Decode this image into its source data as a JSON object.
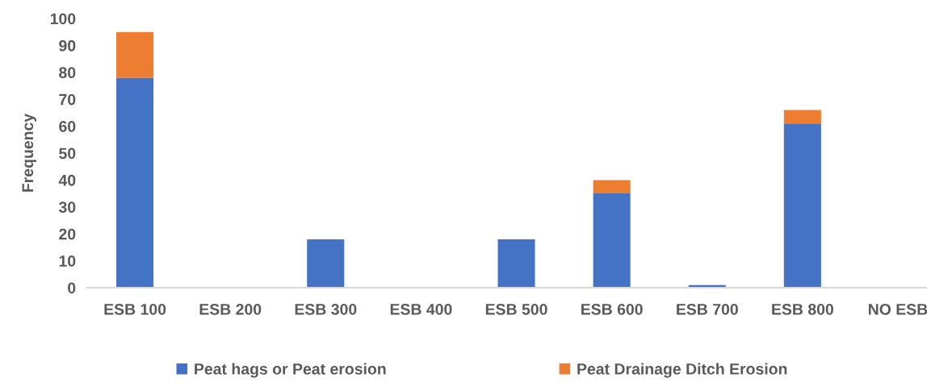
{
  "chart_data": {
    "type": "bar",
    "stacked": true,
    "ylabel": "Frequency",
    "categories": [
      "ESB 100",
      "ESB 200",
      "ESB 300",
      "ESB 400",
      "ESB 500",
      "ESB 600",
      "ESB 700",
      "ESB 800",
      "NO ESB"
    ],
    "series": [
      {
        "name": "Peat hags or Peat erosion",
        "color": "#4472c4",
        "values": [
          78,
          0,
          18,
          0,
          18,
          35,
          1,
          61,
          0
        ]
      },
      {
        "name": "Peat Drainage Ditch Erosion",
        "color": "#ed7d31",
        "values": [
          17,
          0,
          0,
          0,
          0,
          5,
          0,
          5,
          0
        ]
      }
    ],
    "ylim": [
      0,
      100
    ],
    "yticks": [
      0,
      10,
      20,
      30,
      40,
      50,
      60,
      70,
      80,
      90,
      100
    ],
    "grid": false,
    "legend": "bottom"
  }
}
